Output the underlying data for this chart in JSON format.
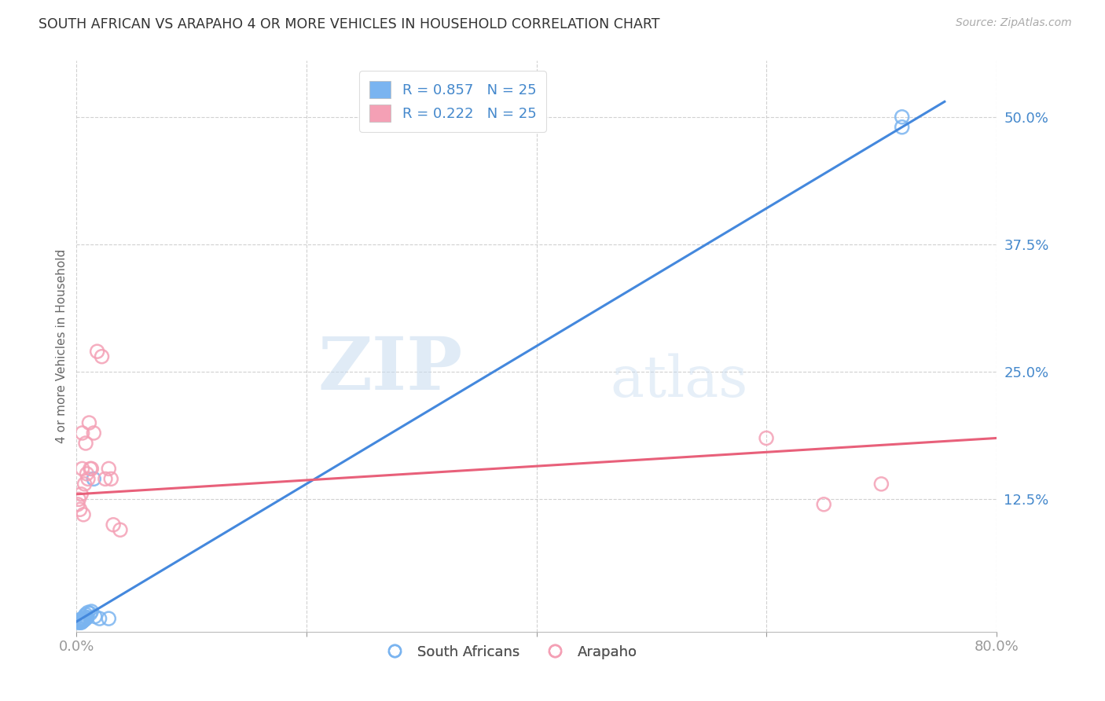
{
  "title": "SOUTH AFRICAN VS ARAPAHO 4 OR MORE VEHICLES IN HOUSEHOLD CORRELATION CHART",
  "source": "Source: ZipAtlas.com",
  "ylabel": "4 or more Vehicles in Household",
  "ytick_values": [
    0.125,
    0.25,
    0.375,
    0.5
  ],
  "xlim": [
    0.0,
    0.8
  ],
  "ylim": [
    -0.005,
    0.555
  ],
  "watermark_zip": "ZIP",
  "watermark_atlas": "atlas",
  "legend": {
    "blue_label": "R = 0.857   N = 25",
    "pink_label": "R = 0.222   N = 25",
    "south_africans": "South Africans",
    "arapaho": "Arapaho"
  },
  "blue_scatter": [
    [
      0.001,
      0.005
    ],
    [
      0.002,
      0.004
    ],
    [
      0.002,
      0.006
    ],
    [
      0.003,
      0.005
    ],
    [
      0.003,
      0.007
    ],
    [
      0.004,
      0.004
    ],
    [
      0.004,
      0.006
    ],
    [
      0.005,
      0.005
    ],
    [
      0.005,
      0.007
    ],
    [
      0.006,
      0.006
    ],
    [
      0.006,
      0.008
    ],
    [
      0.007,
      0.007
    ],
    [
      0.007,
      0.01
    ],
    [
      0.008,
      0.008
    ],
    [
      0.008,
      0.012
    ],
    [
      0.009,
      0.009
    ],
    [
      0.01,
      0.014
    ],
    [
      0.012,
      0.013
    ],
    [
      0.013,
      0.015
    ],
    [
      0.015,
      0.145
    ],
    [
      0.016,
      0.01
    ],
    [
      0.02,
      0.008
    ],
    [
      0.028,
      0.008
    ],
    [
      0.718,
      0.5
    ],
    [
      0.718,
      0.49
    ]
  ],
  "pink_scatter": [
    [
      0.001,
      0.12
    ],
    [
      0.002,
      0.125
    ],
    [
      0.003,
      0.115
    ],
    [
      0.004,
      0.13
    ],
    [
      0.005,
      0.19
    ],
    [
      0.005,
      0.155
    ],
    [
      0.006,
      0.11
    ],
    [
      0.007,
      0.14
    ],
    [
      0.008,
      0.18
    ],
    [
      0.009,
      0.15
    ],
    [
      0.01,
      0.145
    ],
    [
      0.011,
      0.2
    ],
    [
      0.012,
      0.155
    ],
    [
      0.013,
      0.155
    ],
    [
      0.015,
      0.19
    ],
    [
      0.018,
      0.27
    ],
    [
      0.022,
      0.265
    ],
    [
      0.025,
      0.145
    ],
    [
      0.028,
      0.155
    ],
    [
      0.03,
      0.145
    ],
    [
      0.032,
      0.1
    ],
    [
      0.038,
      0.095
    ],
    [
      0.6,
      0.185
    ],
    [
      0.65,
      0.12
    ],
    [
      0.7,
      0.14
    ]
  ],
  "blue_line_x": [
    0.0,
    0.755
  ],
  "blue_line_y": [
    0.005,
    0.515
  ],
  "pink_line_x": [
    0.0,
    0.8
  ],
  "pink_line_y": [
    0.13,
    0.185
  ],
  "grid_color": "#cccccc",
  "blue_color": "#7ab4f0",
  "pink_color": "#f4a0b5",
  "blue_line_color": "#4488dd",
  "pink_line_color": "#e8607a",
  "title_color": "#333333",
  "axis_label_color": "#666666",
  "tick_color": "#4488cc",
  "source_color": "#aaaaaa"
}
